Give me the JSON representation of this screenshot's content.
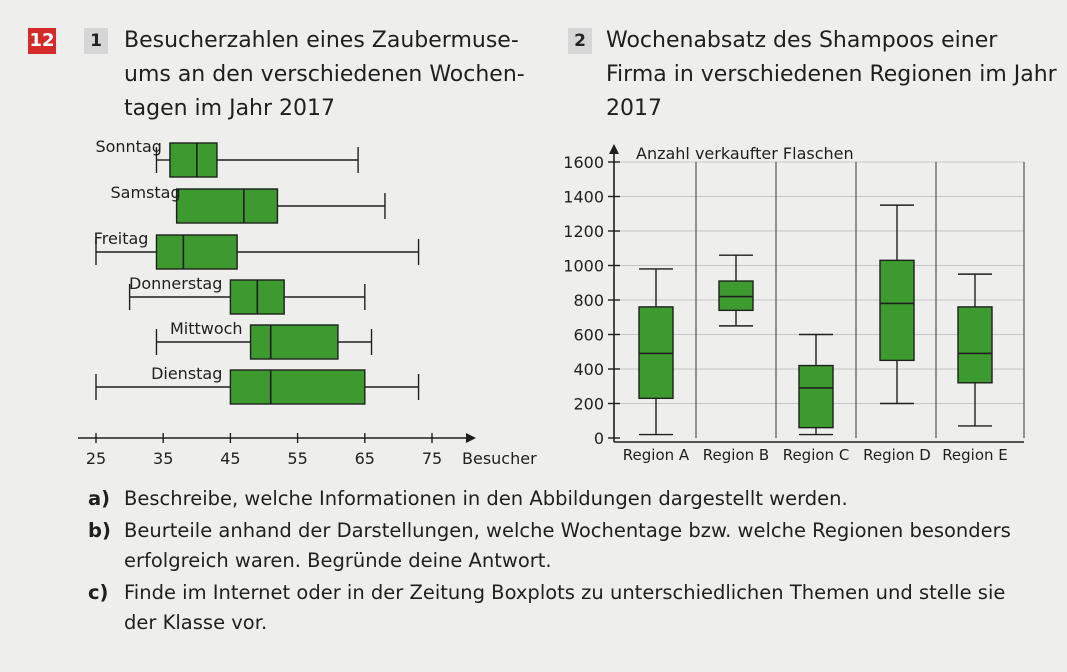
{
  "task_number": "12",
  "tasks": [
    {
      "number": "1",
      "title_lines": [
        "Besucherzahlen eines Zaubermuse-",
        "ums an den verschiedenen Wochen-",
        "tagen im Jahr 2017"
      ]
    },
    {
      "number": "2",
      "title_lines": [
        "Wochenabsatz des Shampoos einer",
        "Firma in verschiedenen Regionen im Jahr",
        "2017"
      ]
    }
  ],
  "colors": {
    "box_fill": "#3c9a2e",
    "box_stroke": "#1f1f1f",
    "task_badge": "#d42a2a"
  },
  "chart_data": [
    {
      "type": "boxplot",
      "orientation": "horizontal",
      "xlabel": "Besucher",
      "xlim": [
        25,
        75
      ],
      "ticks": [
        25,
        35,
        45,
        55,
        65,
        75
      ],
      "grid": false,
      "series": [
        {
          "category": "Sonntag",
          "min": 34,
          "q1": 36,
          "median": 40,
          "q3": 43,
          "max": 64
        },
        {
          "category": "Samstag",
          "min": 37,
          "q1": 37,
          "median": 47,
          "q3": 52,
          "max": 68
        },
        {
          "category": "Freitag",
          "min": 25,
          "q1": 34,
          "median": 38,
          "q3": 46,
          "max": 73
        },
        {
          "category": "Donnerstag",
          "min": 30,
          "q1": 45,
          "median": 49,
          "q3": 53,
          "max": 65
        },
        {
          "category": "Mittwoch",
          "min": 34,
          "q1": 48,
          "median": 51,
          "q3": 61,
          "max": 66
        },
        {
          "category": "Dienstag",
          "min": 25,
          "q1": 45,
          "median": 51,
          "q3": 65,
          "max": 73
        }
      ]
    },
    {
      "type": "boxplot",
      "orientation": "vertical",
      "ylabel": "Anzahl verkaufter Flaschen",
      "ylim": [
        0,
        1600
      ],
      "ticks": [
        0,
        200,
        400,
        600,
        800,
        1000,
        1200,
        1400,
        1600
      ],
      "grid": true,
      "series": [
        {
          "category": "Region A",
          "min": 20,
          "q1": 230,
          "median": 490,
          "q3": 760,
          "max": 980
        },
        {
          "category": "Region B",
          "min": 650,
          "q1": 740,
          "median": 820,
          "q3": 910,
          "max": 1060
        },
        {
          "category": "Region C",
          "min": 20,
          "q1": 60,
          "median": 290,
          "q3": 420,
          "max": 600
        },
        {
          "category": "Region D",
          "min": 200,
          "q1": 450,
          "median": 780,
          "q3": 1030,
          "max": 1350
        },
        {
          "category": "Region E",
          "min": 70,
          "q1": 320,
          "median": 490,
          "q3": 760,
          "max": 950
        }
      ]
    }
  ],
  "questions": [
    {
      "label": "a)",
      "text": "Beschreibe, welche Informationen in den Abbildungen dargestellt werden."
    },
    {
      "label": "b)",
      "text": "Beurteile anhand der Darstellungen, welche Wochentage bzw. welche Regionen besonders erfolgreich waren. Begründe deine Antwort."
    },
    {
      "label": "c)",
      "text": "Finde im Internet oder in der Zeitung Boxplots zu unterschiedlichen Themen und stelle sie der Klasse vor."
    }
  ]
}
